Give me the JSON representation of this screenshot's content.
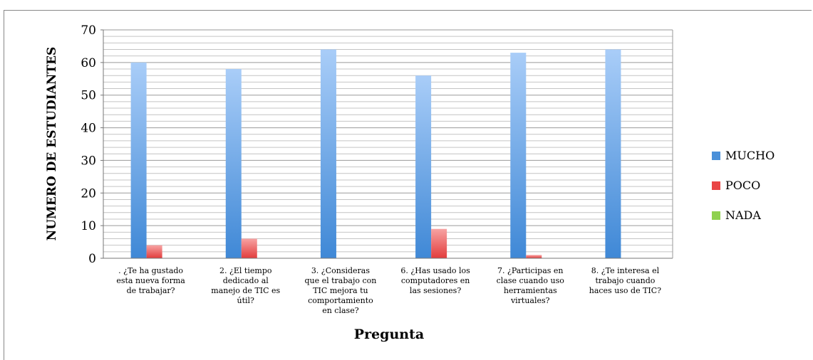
{
  "chart_data": {
    "type": "bar",
    "xlabel": "Pregunta",
    "ylabel": "NUMERO DE ESTUDIANTES",
    "ylim": [
      0,
      70
    ],
    "yticks": [
      0,
      10,
      20,
      30,
      40,
      50,
      60,
      70
    ],
    "grid": true,
    "legend_position": "right",
    "categories": [
      ". ¿Te ha gustado esta nueva forma de trabajar?",
      "2. ¿El tiempo dedicado al manejo de TIC es útil?",
      "3. ¿Consideras que el trabajo con TIC mejora tu comportamiento en clase?",
      "6. ¿Has usado los computadores en las sesiones?",
      "7. ¿Participas en clase cuando uso herramientas virtuales?",
      "8. ¿Te interesa el trabajo cuando haces uso de TIC?"
    ],
    "category_label_lines": [
      [
        ". ¿Te ha gustado",
        "esta nueva forma",
        "de trabajar?"
      ],
      [
        "2. ¿El tiempo",
        "dedicado al",
        "manejo de TIC es",
        "útil?"
      ],
      [
        "3. ¿Consideras",
        "que el trabajo con",
        "TIC mejora tu",
        "comportamiento",
        "en clase?"
      ],
      [
        "6. ¿Has usado los",
        "computadores en",
        "las sesiones?"
      ],
      [
        "7. ¿Participas en",
        "clase cuando uso",
        "herramientas",
        "virtuales?"
      ],
      [
        "8. ¿Te interesa el",
        "trabajo cuando",
        "haces uso de TIC?"
      ]
    ],
    "series": [
      {
        "name": "MUCHO",
        "color": "#4a90d9",
        "values": [
          60,
          58,
          64,
          56,
          63,
          64
        ]
      },
      {
        "name": "POCO",
        "color": "#e94545",
        "values": [
          4,
          6,
          0,
          9,
          1,
          0
        ]
      },
      {
        "name": "NADA",
        "color": "#8fd14f",
        "values": [
          0,
          0,
          0,
          0,
          0,
          0
        ]
      }
    ]
  }
}
